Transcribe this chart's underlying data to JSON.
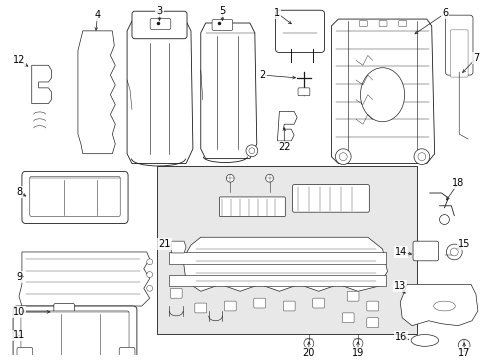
{
  "bg_color": "#ffffff",
  "line_color": "#1a1a1a",
  "box_bg": "#e8e8e8",
  "lw": 0.6
}
